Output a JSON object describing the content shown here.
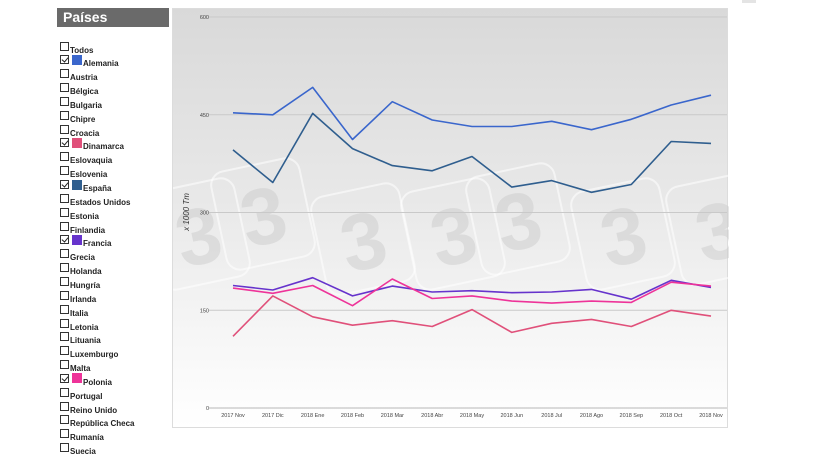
{
  "sidebar": {
    "title": "Países",
    "countries": [
      {
        "label": "Todos",
        "checked": false
      },
      {
        "label": "Alemania",
        "checked": true,
        "color": "#3a66cc"
      },
      {
        "label": "Austria",
        "checked": false
      },
      {
        "label": "Bélgica",
        "checked": false
      },
      {
        "label": "Bulgaria",
        "checked": false
      },
      {
        "label": "Chipre",
        "checked": false
      },
      {
        "label": "Croacia",
        "checked": false
      },
      {
        "label": "Dinamarca",
        "checked": true,
        "color": "#e0507a"
      },
      {
        "label": "Eslovaquia",
        "checked": false
      },
      {
        "label": "Eslovenia",
        "checked": false
      },
      {
        "label": "España",
        "checked": true,
        "color": "#2f5e8e"
      },
      {
        "label": "Estados Unidos",
        "checked": false
      },
      {
        "label": "Estonia",
        "checked": false
      },
      {
        "label": "Finlandia",
        "checked": false
      },
      {
        "label": "Francia",
        "checked": true,
        "color": "#6633cc"
      },
      {
        "label": "Grecia",
        "checked": false
      },
      {
        "label": "Holanda",
        "checked": false
      },
      {
        "label": "Hungría",
        "checked": false
      },
      {
        "label": "Irlanda",
        "checked": false
      },
      {
        "label": "Italia",
        "checked": false
      },
      {
        "label": "Letonia",
        "checked": false
      },
      {
        "label": "Lituania",
        "checked": false
      },
      {
        "label": "Luxemburgo",
        "checked": false
      },
      {
        "label": "Malta",
        "checked": false
      },
      {
        "label": "Polonia",
        "checked": true,
        "color": "#ee3399"
      },
      {
        "label": "Portugal",
        "checked": false
      },
      {
        "label": "Reino Unido",
        "checked": false
      },
      {
        "label": "República Checa",
        "checked": false
      },
      {
        "label": "Rumanía",
        "checked": false
      },
      {
        "label": "Suecia",
        "checked": false
      }
    ]
  },
  "chart_data": {
    "type": "line",
    "ylabel": "x 1000 Tm",
    "ylim": [
      0,
      600
    ],
    "yticks": [
      0,
      150,
      300,
      450,
      600
    ],
    "grid": true,
    "legend": "none",
    "x": [
      "2017 Nov",
      "2017 Dic",
      "2018 Ene",
      "2018 Feb",
      "2018 Mar",
      "2018 Abr",
      "2018 May",
      "2018 Jun",
      "2018 Jul",
      "2018 Ago",
      "2018 Sep",
      "2018 Oct",
      "2018 Nov"
    ],
    "series": [
      {
        "name": "Alemania",
        "color": "#3a66cc",
        "values": [
          453,
          450,
          492,
          412,
          470,
          442,
          432,
          432,
          440,
          427,
          443,
          465,
          480
        ]
      },
      {
        "name": "España",
        "color": "#2f5e8e",
        "values": [
          396,
          346,
          452,
          398,
          372,
          364,
          386,
          339,
          349,
          331,
          343,
          409,
          406
        ]
      },
      {
        "name": "Francia",
        "color": "#6633cc",
        "values": [
          188,
          181,
          200,
          172,
          187,
          178,
          180,
          177,
          178,
          182,
          167,
          196,
          185
        ]
      },
      {
        "name": "Polonia",
        "color": "#ee3399",
        "values": [
          184,
          176,
          188,
          157,
          198,
          168,
          172,
          164,
          161,
          164,
          162,
          193,
          187
        ]
      },
      {
        "name": "Dinamarca",
        "color": "#e0507a",
        "values": [
          110,
          172,
          140,
          127,
          134,
          125,
          151,
          116,
          130,
          136,
          125,
          150,
          141
        ]
      }
    ]
  }
}
